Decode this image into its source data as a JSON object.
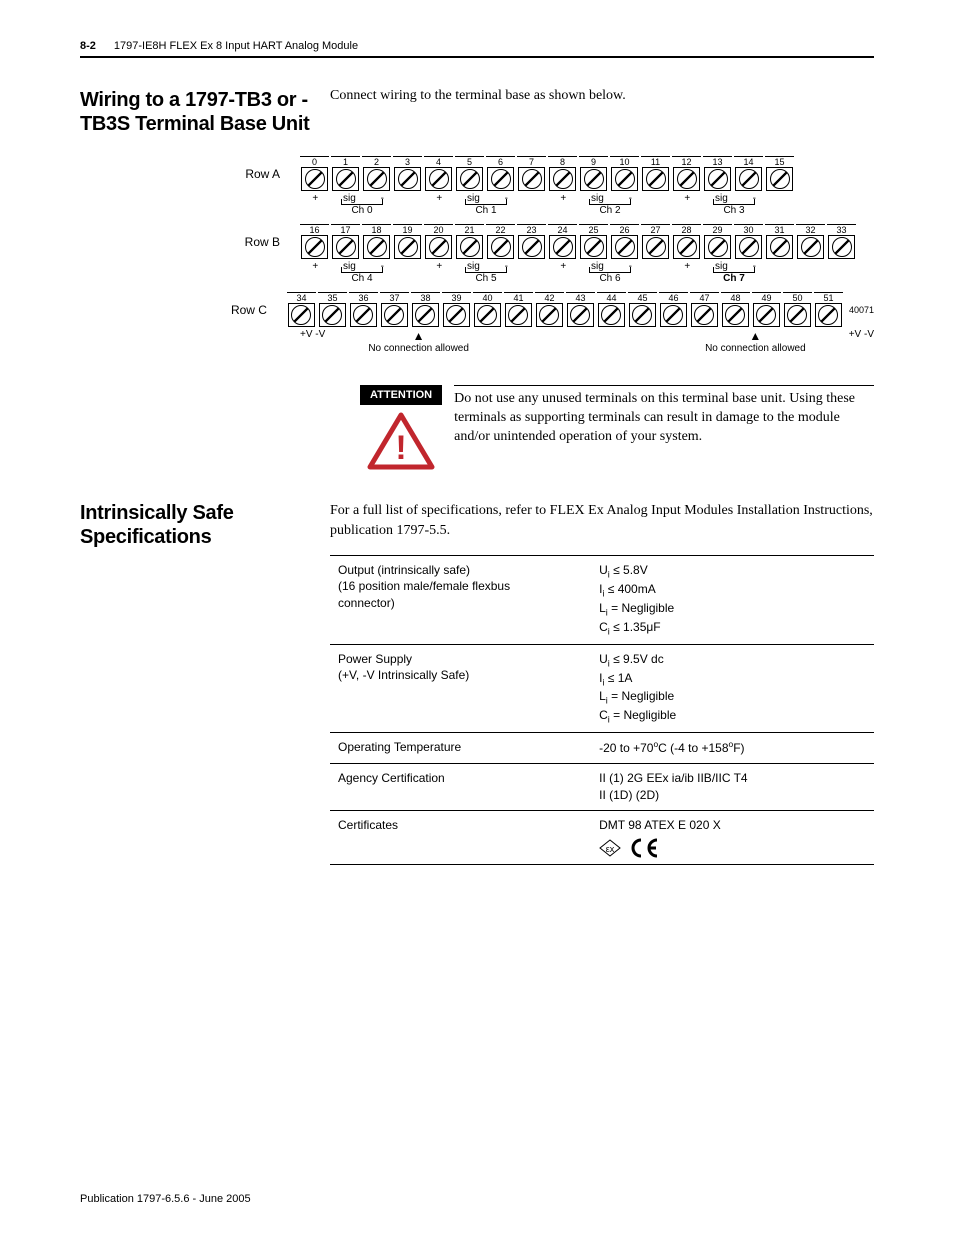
{
  "header": {
    "page_num": "8-2",
    "title": "1797-IE8H FLEX Ex 8 Input HART Analog Module"
  },
  "sections": {
    "wiring_title": "Wiring to a 1797-TB3 or -TB3S Terminal Base Unit",
    "wiring_intro": "Connect wiring to the terminal base as shown below.",
    "safe_title": "Intrinsically Safe Specifications",
    "safe_intro": "For a full list of specifications, refer to FLEX Ex Analog Input Modules Installation Instructions, publication 1797-5.5."
  },
  "diagram": {
    "rows": {
      "A": {
        "label": "Row A",
        "start": 0,
        "end": 15,
        "channels": [
          "Ch 0",
          "Ch 1",
          "Ch 2",
          "Ch 3"
        ]
      },
      "B": {
        "label": "Row B",
        "start": 16,
        "end": 33,
        "channels": [
          "Ch 4",
          "Ch 5",
          "Ch 6",
          "Ch 7"
        ],
        "bold_last": true
      },
      "C": {
        "label": "Row C",
        "start": 34,
        "end": 51
      }
    },
    "sig_labels": [
      "+",
      "sig",
      "-"
    ],
    "rowc": {
      "left_v": "+V  -V",
      "right_v": "+V  -V",
      "no_conn": "No connection allowed",
      "code": "40071"
    }
  },
  "attention": {
    "badge": "ATTENTION",
    "text": "Do not use any unused terminals on this terminal base unit. Using these terminals as supporting terminals can result in damage to the module and/or unintended operation of your system.",
    "tri_border": "#c1262d",
    "tri_bang": "!"
  },
  "specs_table": [
    {
      "label_lines": [
        "Output (intrinsically safe)",
        "(16 position male/female flexbus",
        "connector)"
      ],
      "value_lines": [
        "Uᵢ ≤ 5.8V",
        "Iᵢ ≤ 400mA",
        "Lᵢ = Negligible",
        "Cᵢ ≤ 1.35μF"
      ]
    },
    {
      "label_lines": [
        "Power Supply",
        " (+V, -V Intrinsically Safe)"
      ],
      "value_lines": [
        "Uᵢ ≤ 9.5V dc",
        "Iᵢ ≤ 1A",
        "Lᵢ = Negligible",
        "Cᵢ = Negligible"
      ]
    },
    {
      "label_lines": [
        "Operating Temperature"
      ],
      "value_lines": [
        "-20 to +70°C (-4 to +158°F)"
      ],
      "superscript_o": true
    },
    {
      "label_lines": [
        "Agency Certification"
      ],
      "value_lines": [
        "II (1) 2G EEx ia/ib IIB/IIC T4",
        "II (1D) (2D)"
      ]
    },
    {
      "label_lines": [
        "Certificates"
      ],
      "value_lines": [
        "DMT 98 ATEX E 020 X"
      ],
      "show_ce": true
    }
  ],
  "footer": "Publication 1797-6.5.6 - June 2005",
  "colors": {
    "accent_red": "#c1262d",
    "text": "#000000",
    "bg": "#ffffff"
  }
}
